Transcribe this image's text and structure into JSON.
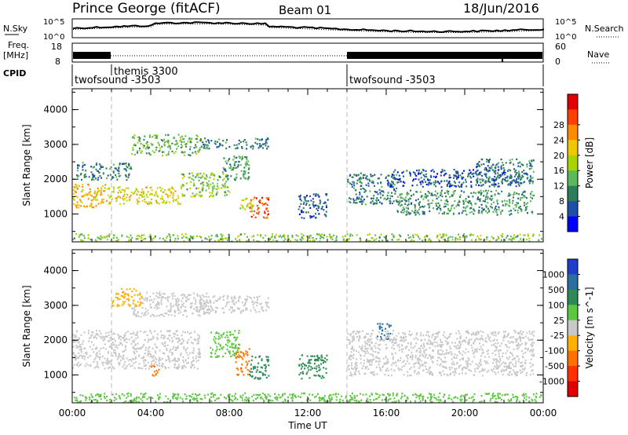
{
  "header": {
    "station": "Prince George (fitACF)",
    "beam": "Beam 01",
    "date": "18/Jun/2016"
  },
  "top_panels": {
    "nsky_label": "N.Sky",
    "nsky_ticks": [
      "10^5",
      "10^0"
    ],
    "nsearch_label": "N.Search",
    "nsearch_ticks": [
      "10^5",
      "10^0"
    ],
    "freq_label": "Freq.",
    "freq_unit": "[MHz]",
    "freq_ticks": [
      "18",
      "8"
    ],
    "nave_label": "Nave",
    "nave_ticks": [
      "60",
      "0"
    ],
    "cpid_label": "CPID",
    "cpid_segments": [
      {
        "label": "twofsound -3503",
        "start_h": 0,
        "end_h": 2
      },
      {
        "label": "themis 3300",
        "start_h": 2,
        "end_h": 14
      },
      {
        "label": "twofsound -3503",
        "start_h": 14,
        "end_h": 24
      }
    ]
  },
  "chart_data": [
    {
      "type": "heatmap",
      "name": "power-panel",
      "ylabel": "Slant Range [km]",
      "xlabel": "",
      "ylim": [
        200,
        4600
      ],
      "yticks": [
        "1000",
        "2000",
        "3000",
        "4000"
      ],
      "xticks": [
        "00:00",
        "04:00",
        "08:00",
        "12:00",
        "16:00",
        "20:00",
        "00:00"
      ],
      "xlim_hours": [
        0,
        24
      ],
      "colorbar": {
        "label": "Power [dB]",
        "ticks": [
          "4",
          "8",
          "12",
          "16",
          "20",
          "24",
          "28"
        ],
        "colors": [
          "#0000ff",
          "#1f4fa8",
          "#2e7d5a",
          "#5cb85c",
          "#a8d200",
          "#f0c800",
          "#ff8c00",
          "#ff4000",
          "#e00000"
        ]
      },
      "regions": [
        {
          "t0": 0.0,
          "t1": 1.8,
          "r0": 1200,
          "r1": 1900,
          "level": 22
        },
        {
          "t0": 1.8,
          "t1": 5.5,
          "r0": 1300,
          "r1": 1800,
          "level": 20
        },
        {
          "t0": 5.5,
          "t1": 8.0,
          "r0": 1500,
          "r1": 2200,
          "level": 16
        },
        {
          "t0": 0.2,
          "t1": 3.0,
          "r0": 2000,
          "r1": 2500,
          "level": 10
        },
        {
          "t0": 3.0,
          "t1": 6.5,
          "r0": 2700,
          "r1": 3300,
          "level": 14
        },
        {
          "t0": 6.5,
          "t1": 10.0,
          "r0": 2900,
          "r1": 3200,
          "level": 10
        },
        {
          "t0": 7.5,
          "t1": 9.0,
          "r0": 2000,
          "r1": 2700,
          "level": 12
        },
        {
          "t0": 9.0,
          "t1": 10.0,
          "r0": 900,
          "r1": 1500,
          "level": 28
        },
        {
          "t0": 8.5,
          "t1": 9.2,
          "r0": 1100,
          "r1": 1500,
          "level": 18
        },
        {
          "t0": 11.5,
          "t1": 13.0,
          "r0": 900,
          "r1": 1600,
          "level": 8
        },
        {
          "t0": 14.0,
          "t1": 16.5,
          "r0": 1300,
          "r1": 2200,
          "level": 10
        },
        {
          "t0": 16.5,
          "t1": 23.5,
          "r0": 1000,
          "r1": 1700,
          "level": 12
        },
        {
          "t0": 16.0,
          "t1": 23.0,
          "r0": 1800,
          "r1": 2300,
          "level": 8
        },
        {
          "t0": 20.5,
          "t1": 23.5,
          "r0": 1900,
          "r1": 2600,
          "level": 10
        },
        {
          "t0": 0.0,
          "t1": 24.0,
          "r0": 200,
          "r1": 450,
          "level": 16
        }
      ]
    },
    {
      "type": "heatmap",
      "name": "velocity-panel",
      "ylabel": "Slant Range [km]",
      "xlabel": "Time UT",
      "ylim": [
        200,
        4600
      ],
      "yticks": [
        "1000",
        "2000",
        "3000",
        "4000"
      ],
      "xticks": [
        "00:00",
        "04:00",
        "08:00",
        "12:00",
        "16:00",
        "20:00",
        "00:00"
      ],
      "xlim_hours": [
        0,
        24
      ],
      "colorbar": {
        "label": "Velocity [m s^-1]",
        "ticks": [
          "1000",
          "500",
          "100",
          "25",
          "-25",
          "-100",
          "-500",
          "-1000"
        ],
        "colors": [
          "#1f3fc8",
          "#2a6fa0",
          "#2e8b57",
          "#5cc840",
          "#c8c8c8",
          "#ffb000",
          "#ff7000",
          "#ff3000",
          "#e00000"
        ]
      },
      "regions": [
        {
          "t0": 0.0,
          "t1": 6.5,
          "r0": 1200,
          "r1": 2300,
          "level": 0
        },
        {
          "t0": 3.0,
          "t1": 7.0,
          "r0": 2700,
          "r1": 3400,
          "level": 0
        },
        {
          "t0": 6.5,
          "t1": 10.0,
          "r0": 2800,
          "r1": 3300,
          "level": 0
        },
        {
          "t0": 2.0,
          "t1": 3.5,
          "r0": 3000,
          "r1": 3500,
          "level": -60
        },
        {
          "t0": 7.0,
          "t1": 8.5,
          "r0": 1500,
          "r1": 2300,
          "level": 60
        },
        {
          "t0": 8.3,
          "t1": 9.0,
          "r0": 1000,
          "r1": 1800,
          "level": -300
        },
        {
          "t0": 9.0,
          "t1": 10.0,
          "r0": 900,
          "r1": 1600,
          "level": 150
        },
        {
          "t0": 11.5,
          "t1": 13.0,
          "r0": 900,
          "r1": 1600,
          "level": 300
        },
        {
          "t0": 15.5,
          "t1": 16.2,
          "r0": 2000,
          "r1": 2500,
          "level": 700
        },
        {
          "t0": 14.0,
          "t1": 23.5,
          "r0": 1000,
          "r1": 2300,
          "level": 0
        },
        {
          "t0": 0.0,
          "t1": 24.0,
          "r0": 200,
          "r1": 500,
          "level": 60
        },
        {
          "t0": 4.0,
          "t1": 4.5,
          "r0": 1000,
          "r1": 1300,
          "level": -300
        }
      ]
    }
  ]
}
